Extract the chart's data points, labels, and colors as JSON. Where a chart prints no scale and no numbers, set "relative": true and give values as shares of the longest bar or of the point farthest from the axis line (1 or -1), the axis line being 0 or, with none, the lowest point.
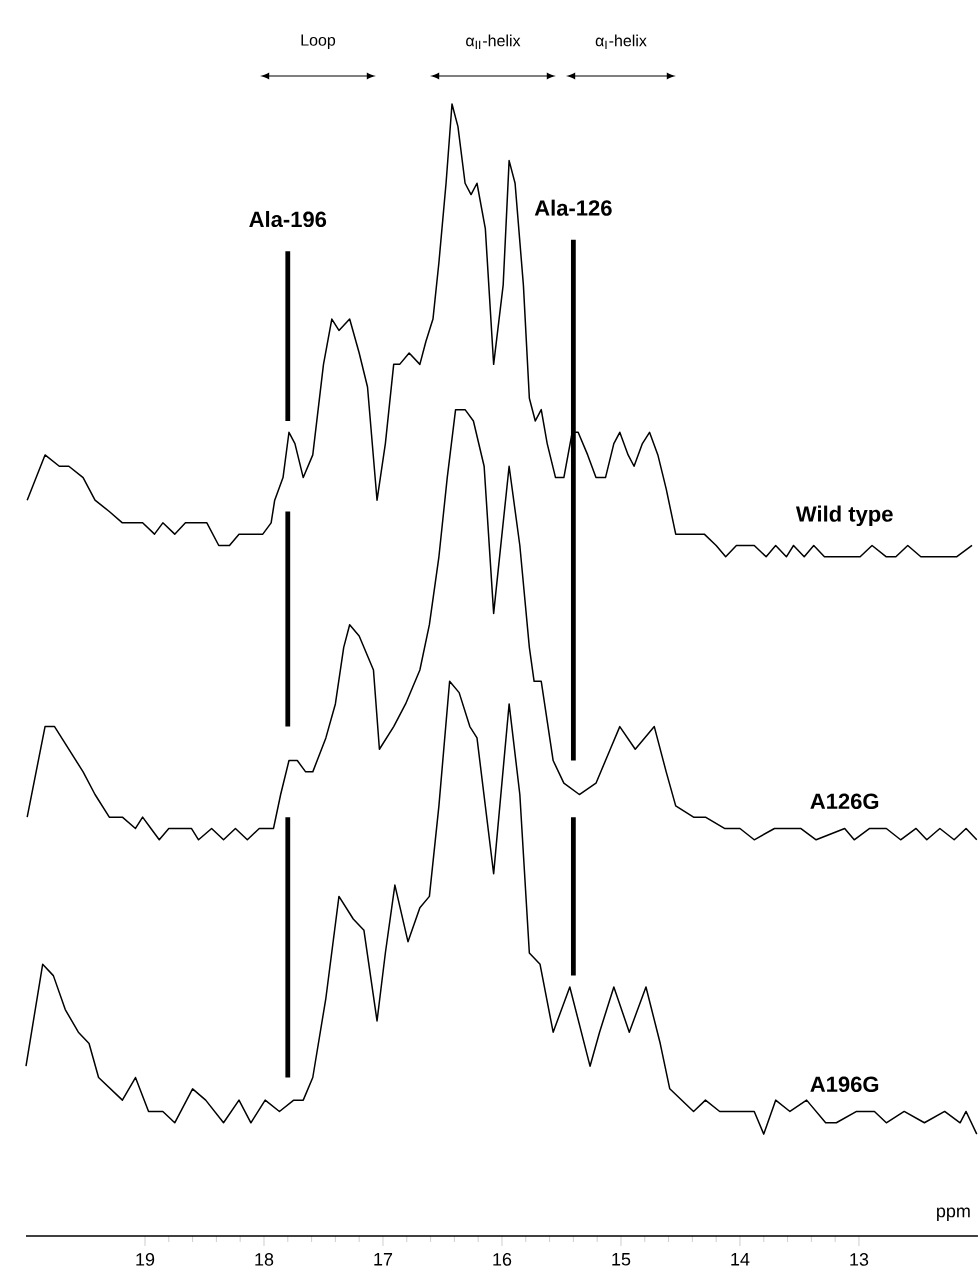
{
  "chart_data": {
    "type": "line",
    "relative": true,
    "xlim": [
      20,
      12
    ],
    "xticks": [
      19,
      18,
      17,
      16,
      15,
      14,
      13
    ],
    "xlabel": "ppm",
    "series": [
      {
        "name": "Wild type",
        "color": "#000000",
        "x": [
          19.99,
          19.84,
          19.72,
          19.64,
          19.52,
          19.42,
          19.3,
          19.19,
          19.1,
          19.02,
          18.92,
          18.85,
          18.75,
          18.66,
          18.58,
          18.48,
          18.38,
          18.29,
          18.21,
          18.11,
          18.01,
          17.94,
          17.91,
          17.84,
          17.79,
          17.74,
          17.67,
          17.59,
          17.5,
          17.43,
          17.37,
          17.28,
          17.2,
          17.13,
          17.05,
          16.98,
          16.91,
          16.86,
          16.78,
          16.69,
          16.64,
          16.58,
          16.53,
          16.47,
          16.42,
          16.37,
          16.31,
          16.26,
          16.21,
          16.14,
          16.07,
          15.99,
          15.94,
          15.89,
          15.82,
          15.77,
          15.72,
          15.67,
          15.62,
          15.55,
          15.48,
          15.41,
          15.36,
          15.28,
          15.21,
          15.13,
          15.06,
          15.01,
          14.94,
          14.89,
          14.82,
          14.76,
          14.69,
          14.62,
          14.54,
          14.42,
          14.3,
          14.2,
          14.12,
          14.03,
          13.97,
          13.88,
          13.78,
          13.7,
          13.61,
          13.55,
          13.46,
          13.38,
          13.29,
          13.19,
          13.09,
          12.99,
          12.89,
          12.77,
          12.69,
          12.59,
          12.48,
          12.38,
          12.28,
          12.18,
          12.05
        ],
        "values": [
          0.65,
          0.69,
          0.68,
          0.68,
          0.67,
          0.65,
          0.64,
          0.63,
          0.63,
          0.63,
          0.62,
          0.63,
          0.62,
          0.63,
          0.63,
          0.63,
          0.61,
          0.61,
          0.62,
          0.62,
          0.62,
          0.63,
          0.65,
          0.67,
          0.71,
          0.7,
          0.67,
          0.69,
          0.77,
          0.81,
          0.8,
          0.81,
          0.78,
          0.75,
          0.65,
          0.7,
          0.77,
          0.77,
          0.78,
          0.77,
          0.79,
          0.81,
          0.86,
          0.93,
          1.0,
          0.98,
          0.93,
          0.92,
          0.93,
          0.89,
          0.77,
          0.84,
          0.95,
          0.93,
          0.84,
          0.74,
          0.72,
          0.73,
          0.7,
          0.67,
          0.67,
          0.71,
          0.71,
          0.69,
          0.67,
          0.67,
          0.7,
          0.71,
          0.69,
          0.68,
          0.7,
          0.71,
          0.69,
          0.66,
          0.62,
          0.62,
          0.62,
          0.61,
          0.6,
          0.61,
          0.61,
          0.61,
          0.6,
          0.61,
          0.6,
          0.61,
          0.6,
          0.61,
          0.6,
          0.6,
          0.6,
          0.6,
          0.61,
          0.6,
          0.6,
          0.61,
          0.6,
          0.6,
          0.6,
          0.6,
          0.61
        ]
      },
      {
        "name": "A126G",
        "color": "#000000",
        "x": [
          19.99,
          19.84,
          19.76,
          19.64,
          19.52,
          19.42,
          19.3,
          19.19,
          19.08,
          19.02,
          18.95,
          18.88,
          18.8,
          18.71,
          18.61,
          18.55,
          18.44,
          18.34,
          18.24,
          18.14,
          18.04,
          17.92,
          17.86,
          17.79,
          17.72,
          17.65,
          17.59,
          17.48,
          17.4,
          17.33,
          17.28,
          17.2,
          17.08,
          17.03,
          16.91,
          16.81,
          16.69,
          16.61,
          16.53,
          16.46,
          16.39,
          16.31,
          16.24,
          16.15,
          16.07,
          16.0,
          15.94,
          15.85,
          15.77,
          15.73,
          15.67,
          15.57,
          15.48,
          15.35,
          15.21,
          15.09,
          15.01,
          14.88,
          14.72,
          14.62,
          14.54,
          14.39,
          14.29,
          14.13,
          14.0,
          13.88,
          13.71,
          13.49,
          13.36,
          13.12,
          13.04,
          12.91,
          12.77,
          12.65,
          12.52,
          12.43,
          12.32,
          12.2,
          12.1,
          12.01
        ],
        "values": [
          0.37,
          0.45,
          0.45,
          0.43,
          0.41,
          0.39,
          0.37,
          0.37,
          0.36,
          0.37,
          0.36,
          0.35,
          0.36,
          0.36,
          0.36,
          0.35,
          0.36,
          0.35,
          0.36,
          0.35,
          0.36,
          0.36,
          0.39,
          0.42,
          0.42,
          0.41,
          0.41,
          0.44,
          0.47,
          0.52,
          0.54,
          0.53,
          0.5,
          0.43,
          0.45,
          0.47,
          0.5,
          0.54,
          0.6,
          0.67,
          0.73,
          0.73,
          0.72,
          0.68,
          0.55,
          0.62,
          0.68,
          0.61,
          0.52,
          0.49,
          0.49,
          0.42,
          0.4,
          0.39,
          0.4,
          0.43,
          0.45,
          0.43,
          0.45,
          0.41,
          0.38,
          0.37,
          0.37,
          0.36,
          0.36,
          0.35,
          0.36,
          0.36,
          0.35,
          0.36,
          0.35,
          0.36,
          0.36,
          0.35,
          0.36,
          0.35,
          0.36,
          0.35,
          0.36,
          0.35
        ]
      },
      {
        "name": "A196G",
        "color": "#000000",
        "x": [
          20.0,
          19.86,
          19.77,
          19.67,
          19.56,
          19.47,
          19.39,
          19.19,
          19.08,
          18.97,
          18.85,
          18.75,
          18.6,
          18.49,
          18.34,
          18.21,
          18.11,
          17.99,
          17.87,
          17.75,
          17.67,
          17.59,
          17.48,
          17.37,
          17.25,
          17.16,
          17.05,
          16.98,
          16.9,
          16.79,
          16.69,
          16.61,
          16.53,
          16.44,
          16.36,
          16.27,
          16.21,
          16.07,
          15.94,
          15.85,
          15.77,
          15.68,
          15.57,
          15.43,
          15.26,
          15.18,
          15.06,
          14.93,
          14.79,
          14.67,
          14.59,
          14.39,
          14.29,
          14.17,
          14.03,
          13.88,
          13.8,
          13.7,
          13.58,
          13.44,
          13.28,
          13.19,
          13.02,
          12.87,
          12.77,
          12.62,
          12.45,
          12.28,
          12.15,
          12.1,
          12.01
        ],
        "values": [
          0.15,
          0.24,
          0.23,
          0.2,
          0.18,
          0.17,
          0.14,
          0.12,
          0.14,
          0.11,
          0.11,
          0.1,
          0.13,
          0.12,
          0.1,
          0.12,
          0.1,
          0.12,
          0.11,
          0.12,
          0.12,
          0.14,
          0.21,
          0.3,
          0.28,
          0.27,
          0.19,
          0.25,
          0.31,
          0.26,
          0.29,
          0.3,
          0.38,
          0.49,
          0.48,
          0.45,
          0.44,
          0.32,
          0.47,
          0.39,
          0.25,
          0.24,
          0.18,
          0.22,
          0.15,
          0.18,
          0.22,
          0.18,
          0.22,
          0.17,
          0.13,
          0.11,
          0.12,
          0.11,
          0.11,
          0.11,
          0.09,
          0.12,
          0.11,
          0.12,
          0.1,
          0.1,
          0.11,
          0.11,
          0.1,
          0.11,
          0.1,
          0.11,
          0.1,
          0.11,
          0.09
        ]
      }
    ],
    "ref_lines": [
      {
        "axis": "x",
        "value": 17.8,
        "label": "Ala-196"
      },
      {
        "axis": "x",
        "value": 15.4,
        "label": "Ala-126"
      }
    ],
    "annotations": [
      "Loop",
      "α$_{II}$-helix",
      "α$_{I}$-helix"
    ]
  }
}
